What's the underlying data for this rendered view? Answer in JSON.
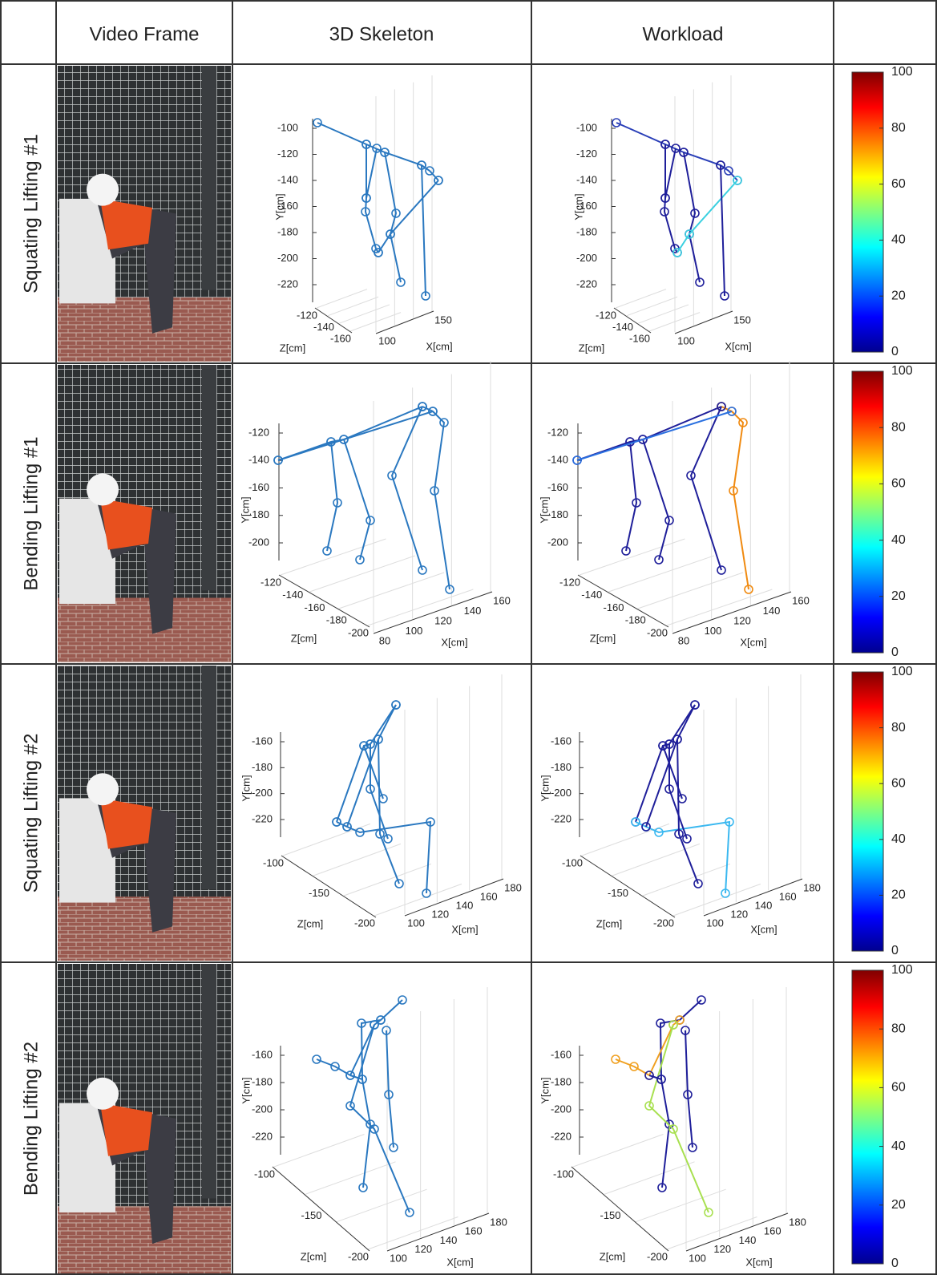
{
  "header": {
    "columns": [
      "Video Frame",
      "3D Skeleton",
      "Workload"
    ]
  },
  "axis_labels": {
    "x": "X[cm]",
    "y": "Y[cm]",
    "z": "Z[cm]"
  },
  "colorbar": {
    "ticks": [
      0,
      20,
      40,
      60,
      80,
      100
    ]
  },
  "rows": [
    {
      "label": "Squating Lifting #1",
      "plot": {
        "yticks": [
          -100,
          -120,
          -140,
          -160,
          -180,
          -200,
          -220
        ],
        "zticks": [
          -120,
          -140,
          -160
        ],
        "xticks": [
          100,
          150
        ]
      }
    },
    {
      "label": "Bending Lifting #1",
      "plot": {
        "yticks": [
          -120,
          -140,
          -160,
          -180,
          -200
        ],
        "zticks": [
          -120,
          -140,
          -160,
          -180,
          -200
        ],
        "xticks": [
          80,
          100,
          120,
          140,
          160
        ]
      }
    },
    {
      "label": "Squating Lifting #2",
      "plot": {
        "yticks": [
          -160,
          -180,
          -200,
          -220
        ],
        "zticks": [
          -100,
          -150,
          -200
        ],
        "xticks": [
          100,
          120,
          140,
          160,
          180
        ]
      }
    },
    {
      "label": "Bending Lifting #2",
      "plot": {
        "yticks": [
          -160,
          -180,
          -200,
          -220
        ],
        "zticks": [
          -100,
          -150,
          -200
        ],
        "xticks": [
          100,
          120,
          140,
          160,
          180
        ]
      }
    }
  ]
}
